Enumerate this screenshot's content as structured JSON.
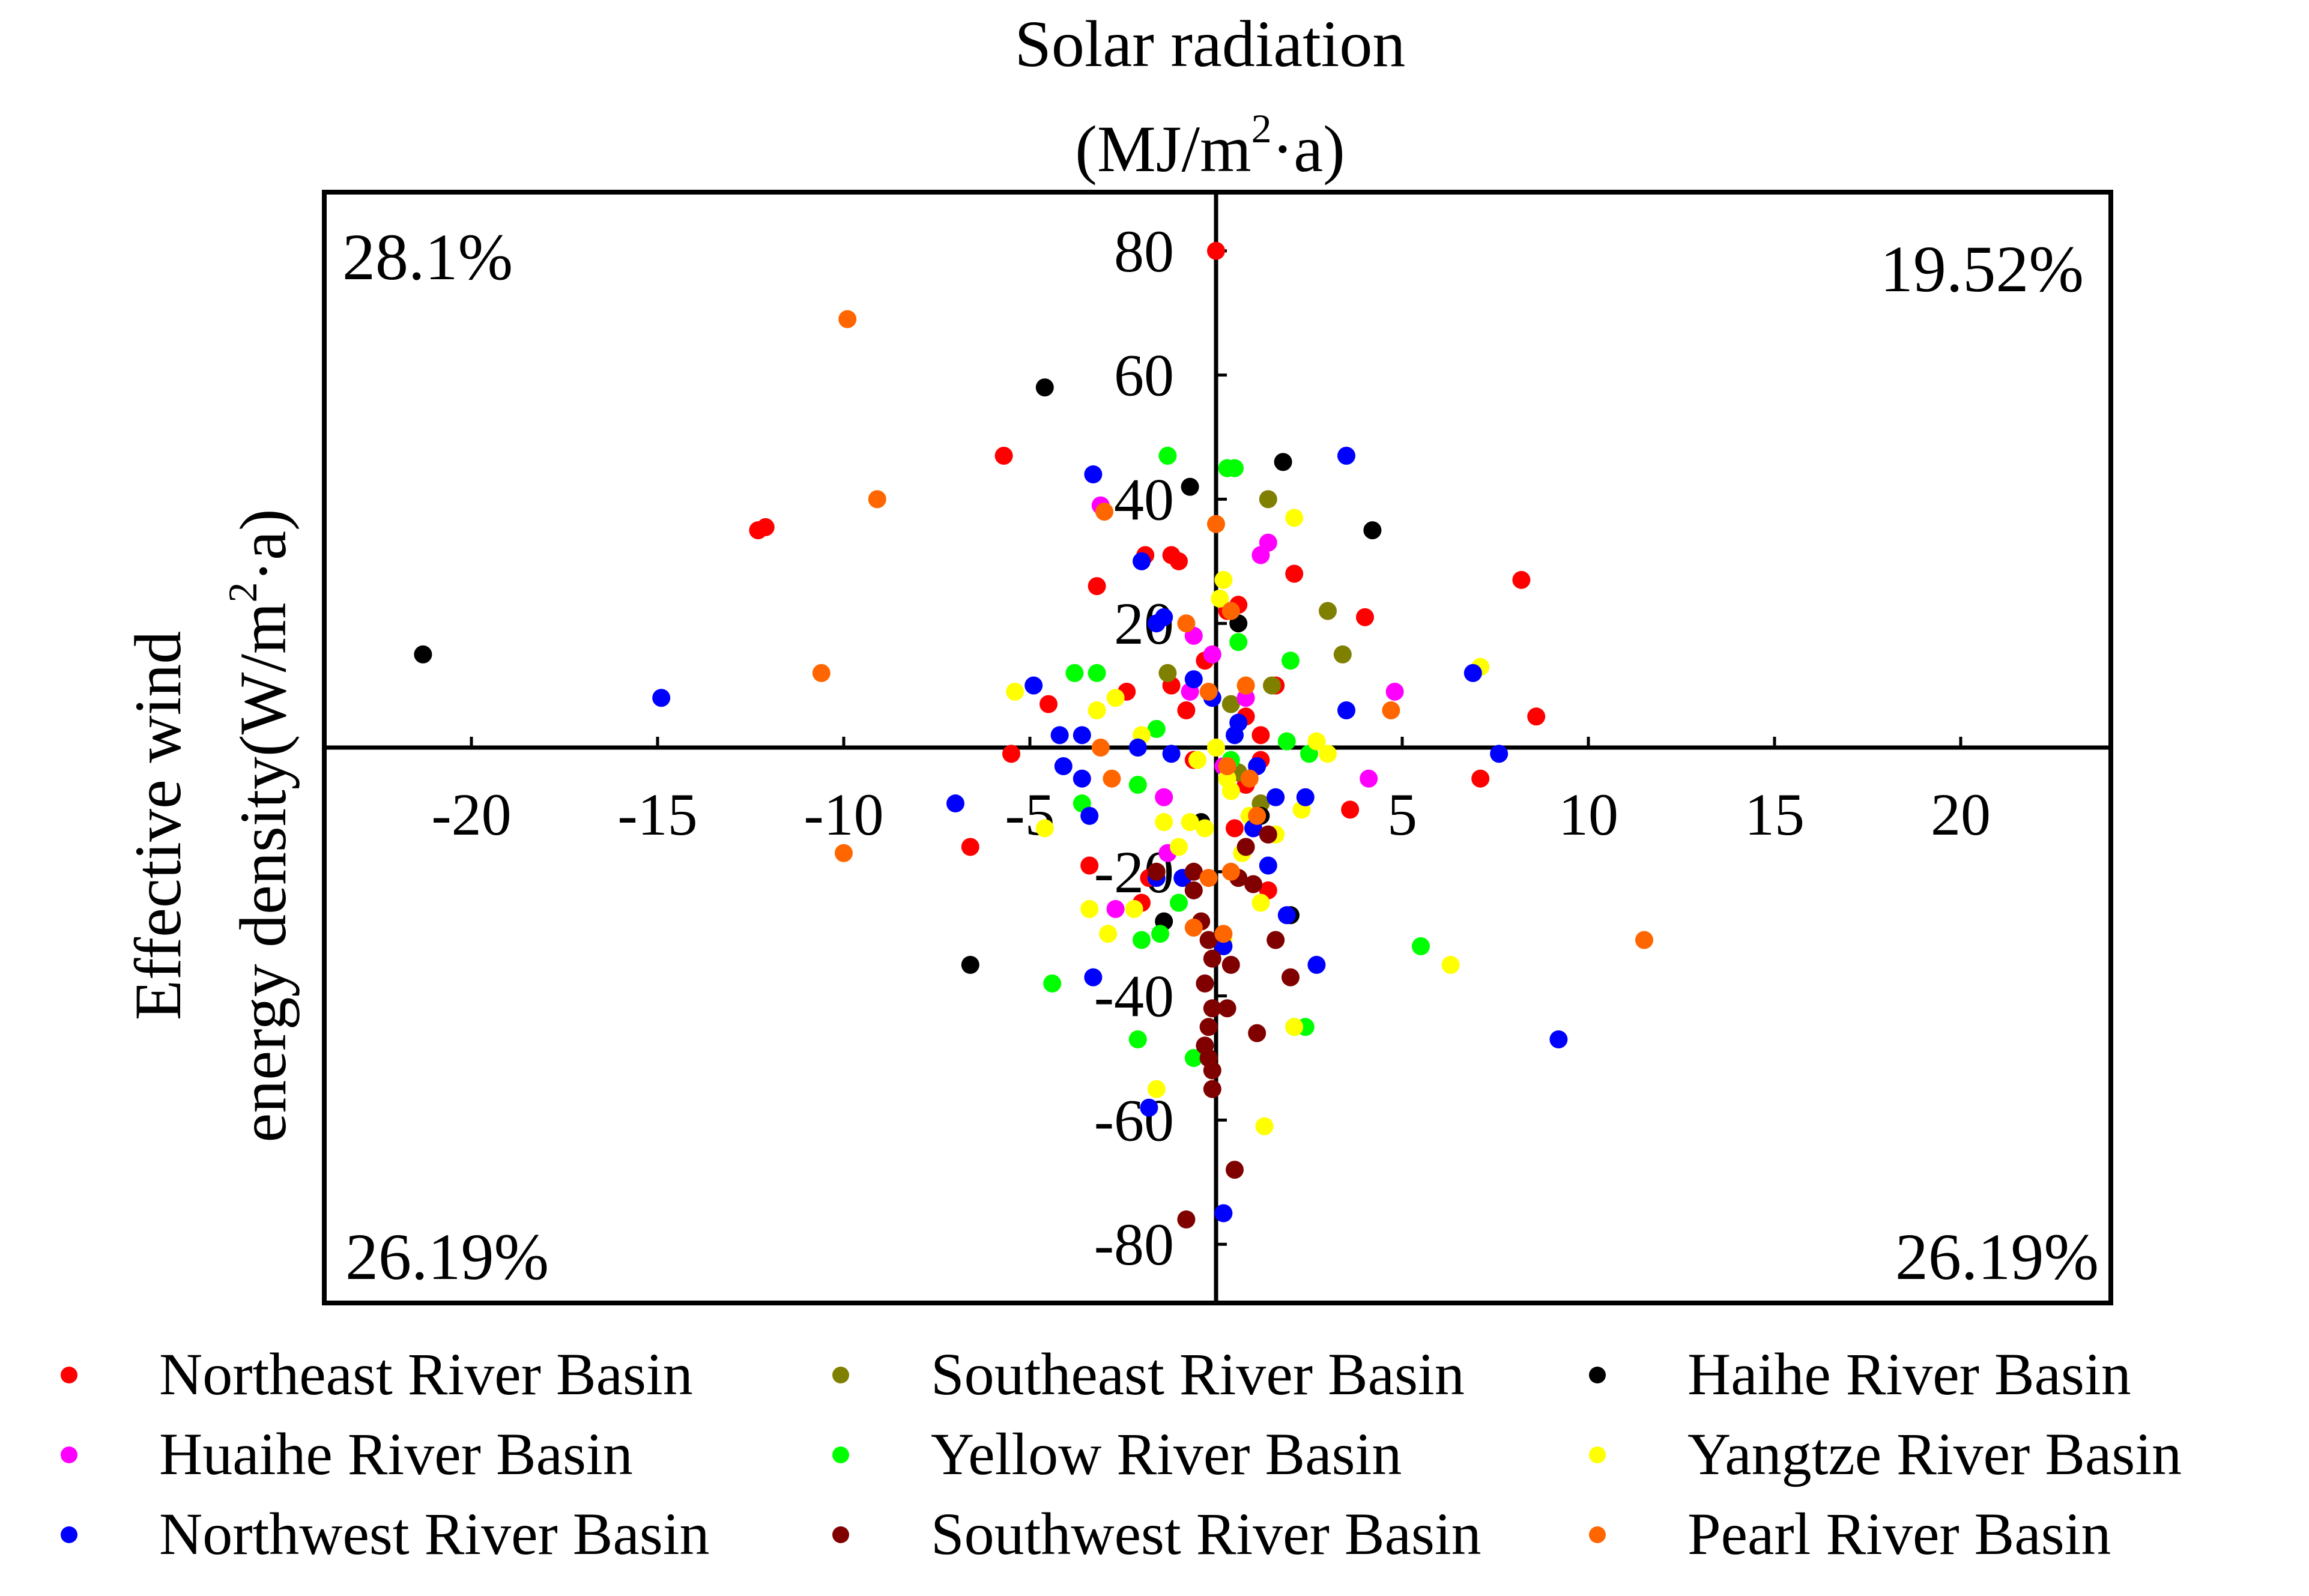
{
  "chart_data": {
    "type": "scatter",
    "title_line1": "Solar radiation",
    "title_unit_pre": "(MJ/m",
    "title_unit_sup": "2",
    "title_unit_post": "·a)",
    "ylabel_line1": "Effective wind",
    "ylabel_pre": "energy density(W/m",
    "ylabel_sup": "2",
    "ylabel_post": "·a)",
    "xlim": [
      -24,
      24
    ],
    "ylim": [
      -90,
      90
    ],
    "x_ticks": [
      -20,
      -15,
      -10,
      -5,
      0,
      5,
      10,
      15,
      20
    ],
    "y_ticks": [
      -80,
      -60,
      -40,
      -20,
      0,
      20,
      40,
      60,
      80
    ],
    "x_tick_labels": [
      "-20",
      "-15",
      "-10",
      "-5",
      "0",
      "5",
      "10",
      "15",
      "20"
    ],
    "y_tick_labels": [
      "-80",
      "-60",
      "-40",
      "-20",
      "0",
      "20",
      "40",
      "60",
      "80"
    ],
    "quadrant_labels": {
      "top_left": "28.1%",
      "top_right": "19.52%",
      "bottom_left": "26.19%",
      "bottom_right": "26.19%"
    },
    "legend_position": "bottom",
    "series": [
      {
        "name": "Northeast River Basin",
        "color": "#ff0000",
        "points": [
          [
            0,
            80
          ],
          [
            -5.7,
            47
          ],
          [
            -12.3,
            35
          ],
          [
            -12.1,
            35.5
          ],
          [
            -3.2,
            26
          ],
          [
            -1.9,
            31
          ],
          [
            -1.2,
            31
          ],
          [
            -1,
            30
          ],
          [
            2.1,
            28
          ],
          [
            0.6,
            23
          ],
          [
            0.3,
            22
          ],
          [
            4,
            21
          ],
          [
            8.2,
            27
          ],
          [
            -0.3,
            14
          ],
          [
            -1.2,
            10
          ],
          [
            -0.8,
            6
          ],
          [
            0.8,
            5
          ],
          [
            -4.5,
            7
          ],
          [
            1.2,
            2
          ],
          [
            8.6,
            5
          ],
          [
            -5.5,
            -1
          ],
          [
            7.1,
            -5
          ],
          [
            3.6,
            -10
          ],
          [
            0.5,
            -13
          ],
          [
            -6.6,
            -16
          ],
          [
            -1.8,
            -21
          ],
          [
            1.4,
            -23
          ],
          [
            -2,
            -25
          ],
          [
            -3.4,
            -19
          ],
          [
            0.8,
            -6
          ],
          [
            1.6,
            10
          ],
          [
            -2.4,
            9
          ],
          [
            -0.6,
            -2
          ],
          [
            1.2,
            -2
          ]
        ]
      },
      {
        "name": "Southeast River Basin",
        "color": "#808000",
        "points": [
          [
            1.4,
            40
          ],
          [
            3,
            22
          ],
          [
            3.4,
            15
          ],
          [
            -1.3,
            12
          ],
          [
            0.4,
            7
          ],
          [
            1.2,
            -9
          ],
          [
            0.6,
            -4
          ],
          [
            1.5,
            10
          ]
        ]
      },
      {
        "name": "Haihe River Basin",
        "color": "#000000",
        "points": [
          [
            -21.3,
            15
          ],
          [
            -4.6,
            58
          ],
          [
            1.8,
            46
          ],
          [
            -0.7,
            42
          ],
          [
            4.2,
            35
          ],
          [
            0.6,
            20
          ],
          [
            1.2,
            -11
          ],
          [
            -6.6,
            -35
          ],
          [
            2,
            -27
          ],
          [
            -1.4,
            -28
          ],
          [
            -0.4,
            -12
          ]
        ]
      },
      {
        "name": "Huaihe River Basin",
        "color": "#ff00ff",
        "points": [
          [
            -3.1,
            39
          ],
          [
            1.4,
            33
          ],
          [
            1.2,
            31
          ],
          [
            -0.6,
            18
          ],
          [
            -0.1,
            15
          ],
          [
            -0.7,
            9
          ],
          [
            0.8,
            8
          ],
          [
            4.8,
            9
          ],
          [
            4.1,
            -5
          ],
          [
            -1.3,
            -17
          ],
          [
            -2.7,
            -26
          ],
          [
            -1.4,
            -8
          ],
          [
            0.2,
            -3
          ]
        ]
      },
      {
        "name": "Yellow River Basin",
        "color": "#00ff00",
        "points": [
          [
            -1.3,
            47
          ],
          [
            0.3,
            45
          ],
          [
            0.5,
            45
          ],
          [
            0.6,
            17
          ],
          [
            2,
            14
          ],
          [
            -3.8,
            12
          ],
          [
            -3.2,
            12
          ],
          [
            -1.6,
            3
          ],
          [
            1.9,
            1
          ],
          [
            2.5,
            -1
          ],
          [
            -3.6,
            -9
          ],
          [
            -2.1,
            -6
          ],
          [
            5.5,
            -32
          ],
          [
            -4.4,
            -38
          ],
          [
            -2,
            -31
          ],
          [
            -1.5,
            -30
          ],
          [
            2.4,
            -45
          ],
          [
            2.1,
            -45
          ],
          [
            -2.1,
            -47
          ],
          [
            -0.6,
            -50
          ],
          [
            -1,
            -25
          ],
          [
            0.4,
            -2
          ]
        ]
      },
      {
        "name": "Yangtze River Basin",
        "color": "#ffff00",
        "points": [
          [
            2.1,
            37
          ],
          [
            0.2,
            27
          ],
          [
            0.1,
            24
          ],
          [
            7.1,
            13
          ],
          [
            0.4,
            -7
          ],
          [
            -5.4,
            9
          ],
          [
            -2.7,
            8
          ],
          [
            -3.2,
            6
          ],
          [
            0.8,
            10
          ],
          [
            0,
            0
          ],
          [
            2.7,
            1
          ],
          [
            3,
            -1
          ],
          [
            -0.5,
            -2
          ],
          [
            -1.4,
            -12
          ],
          [
            0.9,
            -11
          ],
          [
            1.6,
            -14
          ],
          [
            2.3,
            -10
          ],
          [
            -1,
            -16
          ],
          [
            -0.3,
            -13
          ],
          [
            0.7,
            -17
          ],
          [
            -3.4,
            -26
          ],
          [
            -2.2,
            -26
          ],
          [
            -2.9,
            -30
          ],
          [
            0.2,
            -31
          ],
          [
            1.2,
            -25
          ],
          [
            -1.6,
            -21
          ],
          [
            -4.6,
            -13
          ],
          [
            6.3,
            -35
          ],
          [
            2.1,
            -45
          ],
          [
            -1.6,
            -55
          ],
          [
            1.3,
            -61
          ],
          [
            -0.7,
            -12
          ],
          [
            0.3,
            -5
          ],
          [
            -2,
            2
          ]
        ]
      },
      {
        "name": "Northwest River Basin",
        "color": "#0000ff",
        "points": [
          [
            3.5,
            47
          ],
          [
            -3.3,
            44
          ],
          [
            -2,
            30
          ],
          [
            -1.4,
            21
          ],
          [
            -1.6,
            20
          ],
          [
            -0.6,
            11
          ],
          [
            0.6,
            4
          ],
          [
            6.9,
            12
          ],
          [
            3.5,
            6
          ],
          [
            -4.9,
            10
          ],
          [
            -4.2,
            2
          ],
          [
            -3.6,
            2
          ],
          [
            -4.1,
            -3
          ],
          [
            -3.6,
            -5
          ],
          [
            -3.4,
            -11
          ],
          [
            -7,
            -9
          ],
          [
            -2.1,
            0
          ],
          [
            1.1,
            -3
          ],
          [
            1.6,
            -8
          ],
          [
            2.4,
            -8
          ],
          [
            7.6,
            -1
          ],
          [
            -14.9,
            8
          ],
          [
            1,
            -13
          ],
          [
            1.4,
            -19
          ],
          [
            -0.9,
            -21
          ],
          [
            -1.6,
            -21
          ],
          [
            1.9,
            -27
          ],
          [
            0.2,
            -32
          ],
          [
            -3.3,
            -37
          ],
          [
            2.7,
            -35
          ],
          [
            -1.8,
            -58
          ],
          [
            9.2,
            -47
          ],
          [
            0.2,
            -75
          ],
          [
            -1.2,
            -1
          ],
          [
            0.5,
            2
          ],
          [
            -0.1,
            8
          ]
        ]
      },
      {
        "name": "Southwest River Basin",
        "color": "#800000",
        "points": [
          [
            1.4,
            -14
          ],
          [
            0.8,
            -16
          ],
          [
            -0.6,
            -20
          ],
          [
            0.6,
            -21
          ],
          [
            1,
            -22
          ],
          [
            -0.6,
            -23
          ],
          [
            1.6,
            -31
          ],
          [
            2,
            -37
          ],
          [
            -0.2,
            -31
          ],
          [
            -0.1,
            -34
          ],
          [
            0.4,
            -35
          ],
          [
            -0.3,
            -38
          ],
          [
            -0.1,
            -42
          ],
          [
            0.3,
            -42
          ],
          [
            -0.2,
            -45
          ],
          [
            1.1,
            -46
          ],
          [
            -0.3,
            -48
          ],
          [
            -0.2,
            -50
          ],
          [
            -0.1,
            -52
          ],
          [
            -0.1,
            -55
          ],
          [
            0.5,
            -68
          ],
          [
            -0.8,
            -76
          ],
          [
            -1.6,
            -20
          ],
          [
            -0.4,
            -28
          ]
        ]
      },
      {
        "name": "Pearl River Basin",
        "color": "#ff6600",
        "points": [
          [
            -9.9,
            69
          ],
          [
            -9.1,
            40
          ],
          [
            -3,
            38
          ],
          [
            0,
            36
          ],
          [
            0.4,
            22
          ],
          [
            -0.8,
            20
          ],
          [
            -10.6,
            12
          ],
          [
            0.8,
            10
          ],
          [
            -0.2,
            9
          ],
          [
            4.7,
            6
          ],
          [
            -3.1,
            0
          ],
          [
            -10,
            -17
          ],
          [
            -2.8,
            -5
          ],
          [
            0.3,
            -3
          ],
          [
            1.1,
            -11
          ],
          [
            0.4,
            -20
          ],
          [
            -0.2,
            -21
          ],
          [
            11.5,
            -31
          ],
          [
            0.2,
            -30
          ],
          [
            -0.6,
            -29
          ],
          [
            0.9,
            -5
          ]
        ]
      }
    ]
  }
}
